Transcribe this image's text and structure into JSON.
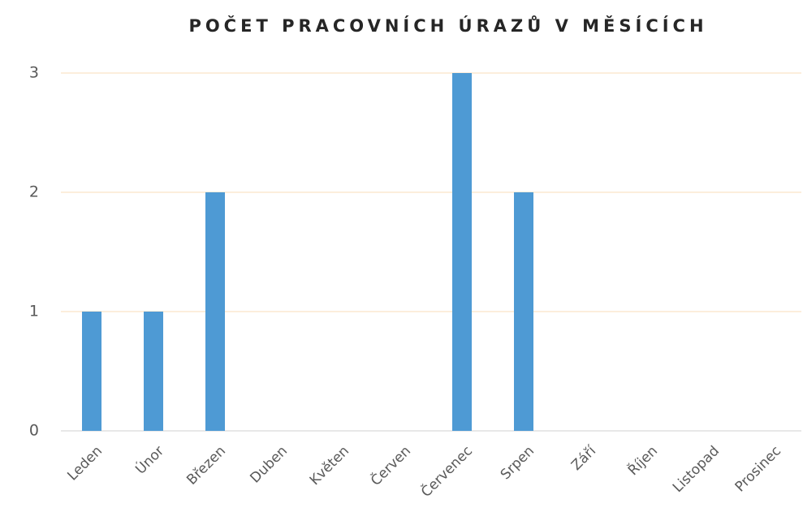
{
  "chart_data": {
    "type": "bar",
    "title": "POČET PRACOVNÍCH ÚRAZŮ V MĚSÍCÍCH",
    "categories": [
      "Leden",
      "Únor",
      "Březen",
      "Duben",
      "Květen",
      "Červen",
      "Červenec",
      "Srpen",
      "Září",
      "Říjen",
      "Listopad",
      "Prosinec"
    ],
    "values": [
      1,
      1,
      2,
      0,
      0,
      0,
      3,
      2,
      0,
      0,
      0,
      0
    ],
    "color": "#4e9ad4",
    "ylim": [
      0,
      3
    ],
    "yticks": [
      0,
      1,
      2,
      3
    ],
    "grid": true
  }
}
